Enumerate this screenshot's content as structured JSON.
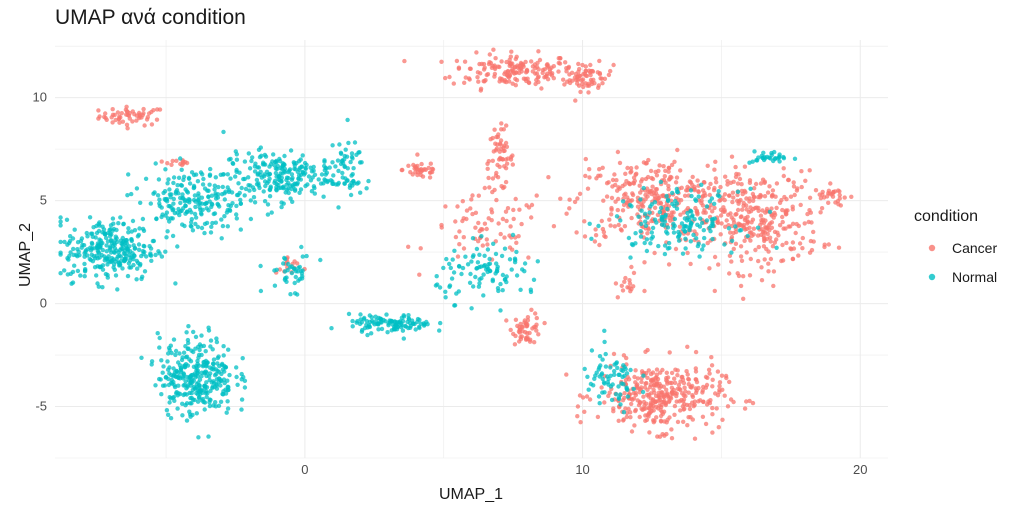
{
  "chart_data": {
    "type": "scatter",
    "title": "UMAP ανά condition",
    "xlabel": "UMAP_1",
    "ylabel": "UMAP_2",
    "xlim": [
      -9,
      21
    ],
    "ylim": [
      -7.5,
      12.8
    ],
    "x_ticks": [
      0,
      10,
      20
    ],
    "y_ticks": [
      -5,
      0,
      5,
      10
    ],
    "grid": true,
    "legend": {
      "title": "condition",
      "placement": "right",
      "entries": [
        "Cancer",
        "Normal"
      ]
    },
    "series": [
      {
        "name": "Cancer",
        "color": "#F8766D",
        "clusters": [
          {
            "cx": -6.2,
            "cy": 9.1,
            "sx": 0.8,
            "sy": 0.3,
            "n": 55
          },
          {
            "cx": 7.5,
            "cy": 11.3,
            "sx": 1.5,
            "sy": 0.55,
            "n": 170
          },
          {
            "cx": 10.2,
            "cy": 11.0,
            "sx": 0.6,
            "sy": 0.45,
            "n": 60
          },
          {
            "cx": 7.0,
            "cy": 7.0,
            "sx": 0.35,
            "sy": 1.0,
            "n": 60
          },
          {
            "cx": 4.2,
            "cy": 6.5,
            "sx": 0.45,
            "sy": 0.3,
            "n": 35
          },
          {
            "cx": 6.5,
            "cy": 3.5,
            "sx": 1.4,
            "sy": 1.1,
            "n": 70
          },
          {
            "cx": 8.0,
            "cy": -1.2,
            "sx": 0.35,
            "sy": 0.5,
            "n": 50
          },
          {
            "cx": 12.5,
            "cy": 5.0,
            "sx": 1.9,
            "sy": 1.4,
            "n": 320
          },
          {
            "cx": 16.3,
            "cy": 4.0,
            "sx": 1.5,
            "sy": 1.6,
            "n": 300
          },
          {
            "cx": 19.0,
            "cy": 5.2,
            "sx": 0.45,
            "sy": 0.35,
            "n": 30
          },
          {
            "cx": 12.8,
            "cy": -4.5,
            "sx": 1.5,
            "sy": 1.1,
            "n": 360
          },
          {
            "cx": 11.6,
            "cy": 1.0,
            "sx": 0.3,
            "sy": 0.5,
            "n": 15
          },
          {
            "cx": -4.8,
            "cy": 6.8,
            "sx": 0.4,
            "sy": 0.1,
            "n": 12
          },
          {
            "cx": -0.6,
            "cy": 1.8,
            "sx": 0.3,
            "sy": 0.4,
            "n": 15
          }
        ]
      },
      {
        "name": "Normal",
        "color": "#00BFC4",
        "clusters": [
          {
            "cx": -7.0,
            "cy": 2.6,
            "sx": 1.1,
            "sy": 1.0,
            "n": 280
          },
          {
            "cx": -4.0,
            "cy": 5.0,
            "sx": 1.3,
            "sy": 1.1,
            "n": 220
          },
          {
            "cx": -1.0,
            "cy": 6.2,
            "sx": 1.3,
            "sy": 0.8,
            "n": 220
          },
          {
            "cx": 1.4,
            "cy": 6.5,
            "sx": 0.5,
            "sy": 0.9,
            "n": 60
          },
          {
            "cx": -3.9,
            "cy": -3.5,
            "sx": 0.9,
            "sy": 1.3,
            "n": 320
          },
          {
            "cx": 3.1,
            "cy": -1.0,
            "sx": 1.0,
            "sy": 0.3,
            "n": 110
          },
          {
            "cx": 6.7,
            "cy": 1.5,
            "sx": 1.3,
            "sy": 0.9,
            "n": 100
          },
          {
            "cx": 11.0,
            "cy": -3.8,
            "sx": 0.7,
            "sy": 1.0,
            "n": 70
          },
          {
            "cx": 13.4,
            "cy": 4.0,
            "sx": 1.5,
            "sy": 1.0,
            "n": 160
          },
          {
            "cx": 16.8,
            "cy": 7.1,
            "sx": 0.5,
            "sy": 0.2,
            "n": 30
          },
          {
            "cx": -0.5,
            "cy": 1.5,
            "sx": 0.6,
            "sy": 0.6,
            "n": 40
          }
        ]
      }
    ]
  }
}
